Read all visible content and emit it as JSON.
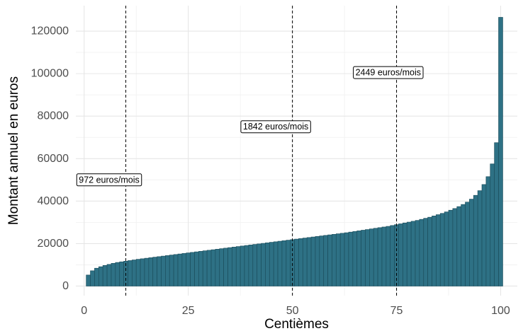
{
  "chart_data": {
    "type": "bar",
    "xlabel": "Centièmes",
    "ylabel": "Montant annuel en euros",
    "xlim": [
      -2,
      104
    ],
    "ylim": [
      -4500,
      132000
    ],
    "x_ticks": [
      0,
      25,
      50,
      75,
      100
    ],
    "y_ticks": [
      0,
      20000,
      40000,
      60000,
      80000,
      100000,
      120000
    ],
    "grid": true,
    "bar_color": "#2e7185",
    "bar_edge_color": "#1c4f5e",
    "x": [
      1,
      2,
      3,
      4,
      5,
      6,
      7,
      8,
      9,
      10,
      11,
      12,
      13,
      14,
      15,
      16,
      17,
      18,
      19,
      20,
      21,
      22,
      23,
      24,
      25,
      26,
      27,
      28,
      29,
      30,
      31,
      32,
      33,
      34,
      35,
      36,
      37,
      38,
      39,
      40,
      41,
      42,
      43,
      44,
      45,
      46,
      47,
      48,
      49,
      50,
      51,
      52,
      53,
      54,
      55,
      56,
      57,
      58,
      59,
      60,
      61,
      62,
      63,
      64,
      65,
      66,
      67,
      68,
      69,
      70,
      71,
      72,
      73,
      74,
      75,
      76,
      77,
      78,
      79,
      80,
      81,
      82,
      83,
      84,
      85,
      86,
      87,
      88,
      89,
      90,
      91,
      92,
      93,
      94,
      95,
      96,
      97,
      98,
      99,
      100
    ],
    "values": [
      5200,
      7200,
      8400,
      9100,
      9700,
      10200,
      10700,
      11100,
      11400,
      11700,
      12000,
      12300,
      12600,
      12850,
      13100,
      13350,
      13600,
      13850,
      14100,
      14350,
      14600,
      14850,
      15100,
      15350,
      15600,
      15850,
      16100,
      16350,
      16600,
      16850,
      17100,
      17350,
      17600,
      17850,
      18100,
      18350,
      18600,
      18850,
      19100,
      19350,
      19600,
      19850,
      20100,
      20350,
      20600,
      20850,
      21100,
      21350,
      21600,
      21850,
      22100,
      22350,
      22600,
      22850,
      23100,
      23350,
      23600,
      23850,
      24100,
      24350,
      24600,
      24850,
      25100,
      25400,
      25700,
      26000,
      26300,
      26600,
      26900,
      27200,
      27500,
      27800,
      28100,
      28500,
      28900,
      29300,
      29700,
      30100,
      30500,
      30900,
      31400,
      31900,
      32400,
      33000,
      33600,
      34200,
      34900,
      35700,
      36500,
      37400,
      38400,
      39500,
      40900,
      42700,
      44900,
      47800,
      51500,
      57500,
      67500,
      126500
    ],
    "reference_lines": [
      {
        "x": 10,
        "label": "972 euros/mois",
        "label_x": 6,
        "label_y": 50000
      },
      {
        "x": 50,
        "label": "1842 euros/mois",
        "label_x": 46,
        "label_y": 75000
      },
      {
        "x": 75,
        "label": "2449 euros/mois",
        "label_x": 73,
        "label_y": 100500
      }
    ]
  }
}
